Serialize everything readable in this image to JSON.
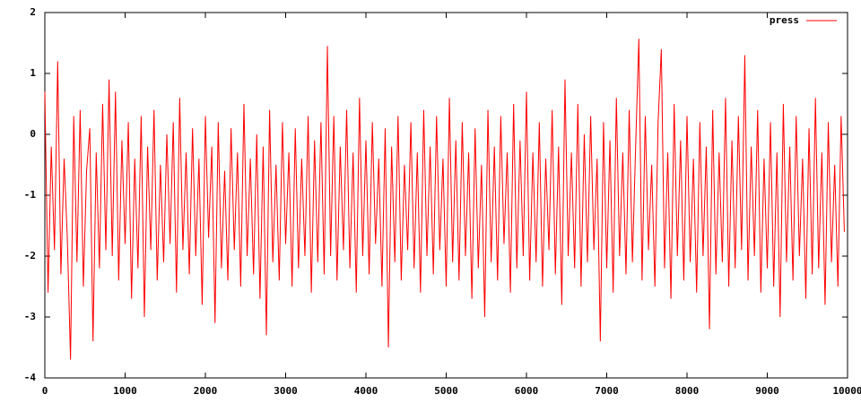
{
  "chart_data": {
    "type": "line",
    "x": [
      0,
      40,
      80,
      120,
      160,
      200,
      240,
      280,
      320,
      360,
      400,
      440,
      480,
      520,
      560,
      600,
      640,
      680,
      720,
      760,
      800,
      840,
      880,
      920,
      960,
      1000,
      1040,
      1080,
      1120,
      1160,
      1200,
      1240,
      1280,
      1320,
      1360,
      1400,
      1440,
      1480,
      1520,
      1560,
      1600,
      1640,
      1680,
      1720,
      1760,
      1800,
      1840,
      1880,
      1920,
      1960,
      2000,
      2040,
      2080,
      2120,
      2160,
      2200,
      2240,
      2280,
      2320,
      2360,
      2400,
      2440,
      2480,
      2520,
      2560,
      2600,
      2640,
      2680,
      2720,
      2760,
      2800,
      2840,
      2880,
      2920,
      2960,
      3000,
      3040,
      3080,
      3120,
      3160,
      3200,
      3240,
      3280,
      3320,
      3360,
      3400,
      3440,
      3480,
      3520,
      3560,
      3600,
      3640,
      3680,
      3720,
      3760,
      3800,
      3840,
      3880,
      3920,
      3960,
      4000,
      4040,
      4080,
      4120,
      4160,
      4200,
      4240,
      4280,
      4320,
      4360,
      4400,
      4440,
      4480,
      4520,
      4560,
      4600,
      4640,
      4680,
      4720,
      4760,
      4800,
      4840,
      4880,
      4920,
      4960,
      5000,
      5040,
      5080,
      5120,
      5160,
      5200,
      5240,
      5280,
      5320,
      5360,
      5400,
      5440,
      5480,
      5520,
      5560,
      5600,
      5640,
      5680,
      5720,
      5760,
      5800,
      5840,
      5880,
      5920,
      5960,
      6000,
      6040,
      6080,
      6120,
      6160,
      6200,
      6240,
      6280,
      6320,
      6360,
      6400,
      6440,
      6480,
      6520,
      6560,
      6600,
      6640,
      6680,
      6720,
      6760,
      6800,
      6840,
      6880,
      6920,
      6960,
      7000,
      7040,
      7080,
      7120,
      7160,
      7200,
      7240,
      7280,
      7320,
      7360,
      7400,
      7440,
      7480,
      7520,
      7560,
      7600,
      7640,
      7680,
      7720,
      7760,
      7800,
      7840,
      7880,
      7920,
      7960,
      8000,
      8040,
      8080,
      8120,
      8160,
      8200,
      8240,
      8280,
      8320,
      8360,
      8400,
      8440,
      8480,
      8520,
      8560,
      8600,
      8640,
      8680,
      8720,
      8760,
      8800,
      8840,
      8880,
      8920,
      8960,
      9000,
      9040,
      9080,
      9120,
      9160,
      9200,
      9240,
      9280,
      9320,
      9360,
      9400,
      9440,
      9480,
      9520,
      9560,
      9600,
      9640,
      9680,
      9720,
      9760,
      9800,
      9840,
      9880,
      9920,
      9960
    ],
    "series": [
      {
        "name": "press",
        "color": "#ff0000",
        "values": [
          0.7,
          -2.6,
          -0.2,
          -1.9,
          1.2,
          -2.3,
          -0.4,
          -1.7,
          -3.7,
          0.3,
          -2.1,
          0.4,
          -2.5,
          -0.6,
          0.1,
          -3.4,
          -0.3,
          -2.2,
          0.5,
          -1.9,
          0.9,
          -2.0,
          0.7,
          -2.4,
          -0.1,
          -1.8,
          0.2,
          -2.7,
          -0.4,
          -2.2,
          0.3,
          -3.0,
          -0.2,
          -1.9,
          0.4,
          -2.4,
          -0.5,
          -2.1,
          0.0,
          -1.8,
          0.2,
          -2.6,
          0.6,
          -1.9,
          -0.3,
          -2.3,
          0.1,
          -2.0,
          -0.4,
          -2.8,
          0.3,
          -1.7,
          -0.2,
          -3.1,
          0.2,
          -2.2,
          -0.6,
          -2.4,
          0.1,
          -1.9,
          -0.3,
          -2.5,
          0.5,
          -2.0,
          -0.4,
          -2.3,
          0.0,
          -2.7,
          -0.2,
          -3.3,
          0.4,
          -2.1,
          -0.5,
          -2.4,
          0.2,
          -1.8,
          -0.3,
          -2.5,
          0.1,
          -2.2,
          -0.4,
          -2.0,
          0.3,
          -2.6,
          -0.1,
          -2.1,
          0.2,
          -2.3,
          1.45,
          -2.0,
          0.3,
          -2.4,
          -0.2,
          -1.9,
          0.4,
          -2.2,
          -0.3,
          -2.6,
          0.6,
          -2.0,
          -0.1,
          -2.3,
          0.2,
          -1.8,
          -0.4,
          -2.5,
          0.1,
          -3.5,
          -0.2,
          -2.1,
          0.3,
          -2.4,
          -0.5,
          -1.9,
          0.2,
          -2.2,
          -0.3,
          -2.6,
          0.4,
          -2.0,
          -0.2,
          -2.3,
          0.3,
          -1.9,
          -0.4,
          -2.5,
          0.6,
          -2.1,
          -0.1,
          -2.4,
          0.2,
          -2.0,
          -0.3,
          -2.7,
          0.1,
          -2.2,
          -0.5,
          -3.0,
          0.4,
          -2.1,
          -0.2,
          -2.4,
          0.3,
          -1.8,
          -0.3,
          -2.6,
          0.5,
          -2.2,
          -0.1,
          -2.0,
          0.7,
          -2.4,
          -0.3,
          -2.1,
          0.2,
          -2.5,
          -0.4,
          -1.9,
          0.4,
          -2.3,
          -0.2,
          -2.8,
          0.9,
          -2.0,
          -0.3,
          -2.2,
          0.5,
          -2.5,
          0.0,
          -2.1,
          0.3,
          -1.9,
          -0.4,
          -3.4,
          0.2,
          -2.2,
          -0.1,
          -2.6,
          0.6,
          -2.0,
          -0.3,
          -2.3,
          0.4,
          -2.1,
          -0.2,
          1.57,
          -2.4,
          0.3,
          -1.9,
          -0.5,
          -2.5,
          0.2,
          1.4,
          -2.2,
          -0.3,
          -2.7,
          0.5,
          -2.0,
          -0.1,
          -2.4,
          0.3,
          -2.1,
          -0.4,
          -2.6,
          0.2,
          -2.0,
          -0.2,
          -3.2,
          0.4,
          -2.3,
          -0.3,
          -2.1,
          0.6,
          -2.5,
          -0.1,
          -2.2,
          0.3,
          -1.9,
          1.3,
          -2.4,
          -0.2,
          -2.0,
          0.4,
          -2.6,
          -0.4,
          -2.2,
          0.2,
          -2.5,
          -0.3,
          -3.0,
          0.5,
          -2.1,
          -0.2,
          -2.4,
          0.3,
          -2.0,
          -0.4,
          -2.7,
          0.1,
          -2.3,
          0.6,
          -2.2,
          -0.3,
          -2.8,
          0.2,
          -2.1,
          -0.5,
          -2.5,
          0.3,
          -1.6
        ]
      }
    ],
    "xlim": [
      0,
      10000
    ],
    "xticks": [
      0,
      1000,
      2000,
      3000,
      4000,
      5000,
      6000,
      7000,
      8000,
      9000,
      10000
    ],
    "ylim": [
      -4,
      2
    ],
    "yticks": [
      -4,
      -3,
      -2,
      -1,
      0,
      1,
      2
    ],
    "grid": false,
    "legend": "top-right"
  }
}
